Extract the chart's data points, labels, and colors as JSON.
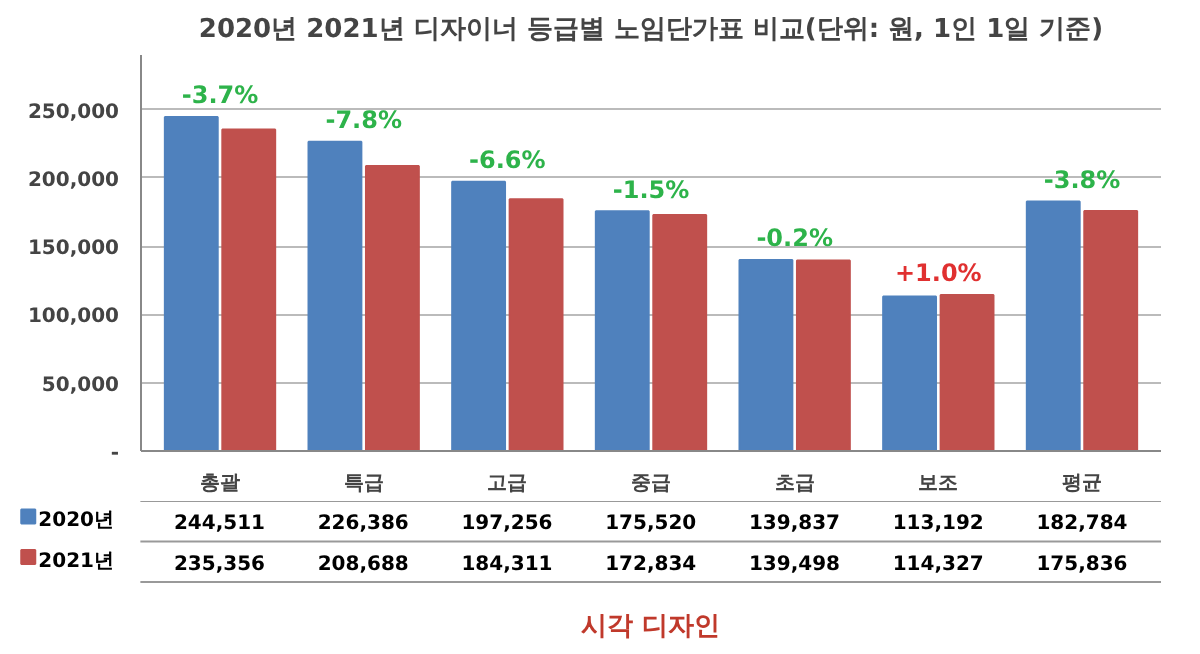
{
  "chart_data": {
    "type": "bar",
    "title": "2020년 2021년 디자이너 등급별 노임단가표 비교(단위: 원, 1인 1일 기준)",
    "categories": [
      "총괄",
      "특급",
      "고급",
      "중급",
      "초급",
      "보조",
      "평균"
    ],
    "series": [
      {
        "name": "2020년",
        "color": "#4f81bd",
        "values": [
          244511,
          226386,
          197256,
          175520,
          139837,
          113192,
          182784
        ],
        "value_labels": [
          "244,511",
          "226,386",
          "197,256",
          "175,520",
          "139,837",
          "113,192",
          "182,784"
        ]
      },
      {
        "name": "2021년",
        "color": "#c0504d",
        "values": [
          235356,
          208688,
          184311,
          172834,
          139498,
          114327,
          175836
        ],
        "value_labels": [
          "235,356",
          "208,688",
          "184,311",
          "172,834",
          "139,498",
          "114,327",
          "175,836"
        ]
      }
    ],
    "ylim": [
      0,
      290000
    ],
    "yticks": [
      {
        "value": 0,
        "label": "-"
      },
      {
        "value": 50000,
        "label": "50,000"
      },
      {
        "value": 100000,
        "label": "100,000"
      },
      {
        "value": 150000,
        "label": "150,000"
      },
      {
        "value": 200000,
        "label": "200,000"
      },
      {
        "value": 250000,
        "label": "250,000"
      }
    ],
    "grid": "y",
    "legend": "bottom",
    "annotations": [
      "-3.7%",
      "-7.8%",
      "-6.6%",
      "-1.5%",
      "-0.2%",
      "+1.0%",
      "-3.8%",
      "시각 디자인"
    ]
  }
}
